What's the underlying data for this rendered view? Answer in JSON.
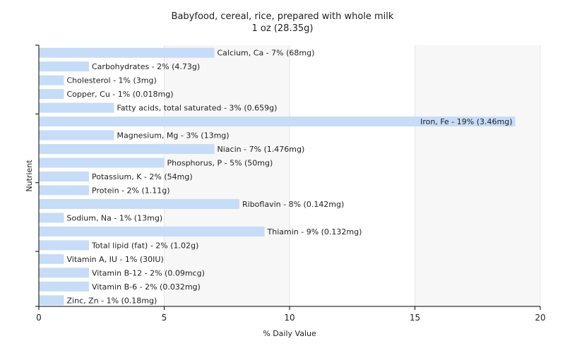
{
  "chart_data": {
    "type": "bar",
    "orientation": "horizontal",
    "title": "Babyfood, cereal, rice, prepared with whole milk",
    "subtitle": "1 oz (28.35g)",
    "xlabel": "% Daily Value",
    "ylabel": "Nutrient",
    "xlim": [
      0,
      20
    ],
    "xticks": [
      0,
      5,
      10,
      15,
      20
    ],
    "grid": true,
    "bar_color": "#c6dcf7",
    "categories": [
      "Calcium, Ca",
      "Carbohydrates",
      "Cholesterol",
      "Copper, Cu",
      "Fatty acids, total saturated",
      "Iron, Fe",
      "Magnesium, Mg",
      "Niacin",
      "Phosphorus, P",
      "Potassium, K",
      "Protein",
      "Riboflavin",
      "Sodium, Na",
      "Thiamin",
      "Total lipid (fat)",
      "Vitamin A, IU",
      "Vitamin B-12",
      "Vitamin B-6",
      "Zinc, Zn"
    ],
    "values": [
      7,
      2,
      1,
      1,
      3,
      19,
      3,
      7,
      5,
      2,
      2,
      8,
      1,
      9,
      2,
      1,
      2,
      2,
      1
    ],
    "labels": [
      "Calcium, Ca - 7% (68mg)",
      "Carbohydrates - 2% (4.73g)",
      "Cholesterol - 1% (3mg)",
      "Copper, Cu - 1% (0.018mg)",
      "Fatty acids, total saturated - 3% (0.659g)",
      "Iron, Fe - 19% (3.46mg)",
      "Magnesium, Mg - 3% (13mg)",
      "Niacin - 7% (1.476mg)",
      "Phosphorus, P - 5% (50mg)",
      "Potassium, K - 2% (54mg)",
      "Protein - 2% (1.11g)",
      "Riboflavin - 8% (0.142mg)",
      "Sodium, Na - 1% (13mg)",
      "Thiamin - 9% (0.132mg)",
      "Total lipid (fat) - 2% (1.02g)",
      "Vitamin A, IU - 1% (30IU)",
      "Vitamin B-12 - 2% (0.09mcg)",
      "Vitamin B-6 - 2% (0.032mg)",
      "Zinc, Zn - 1% (0.18mg)"
    ]
  }
}
